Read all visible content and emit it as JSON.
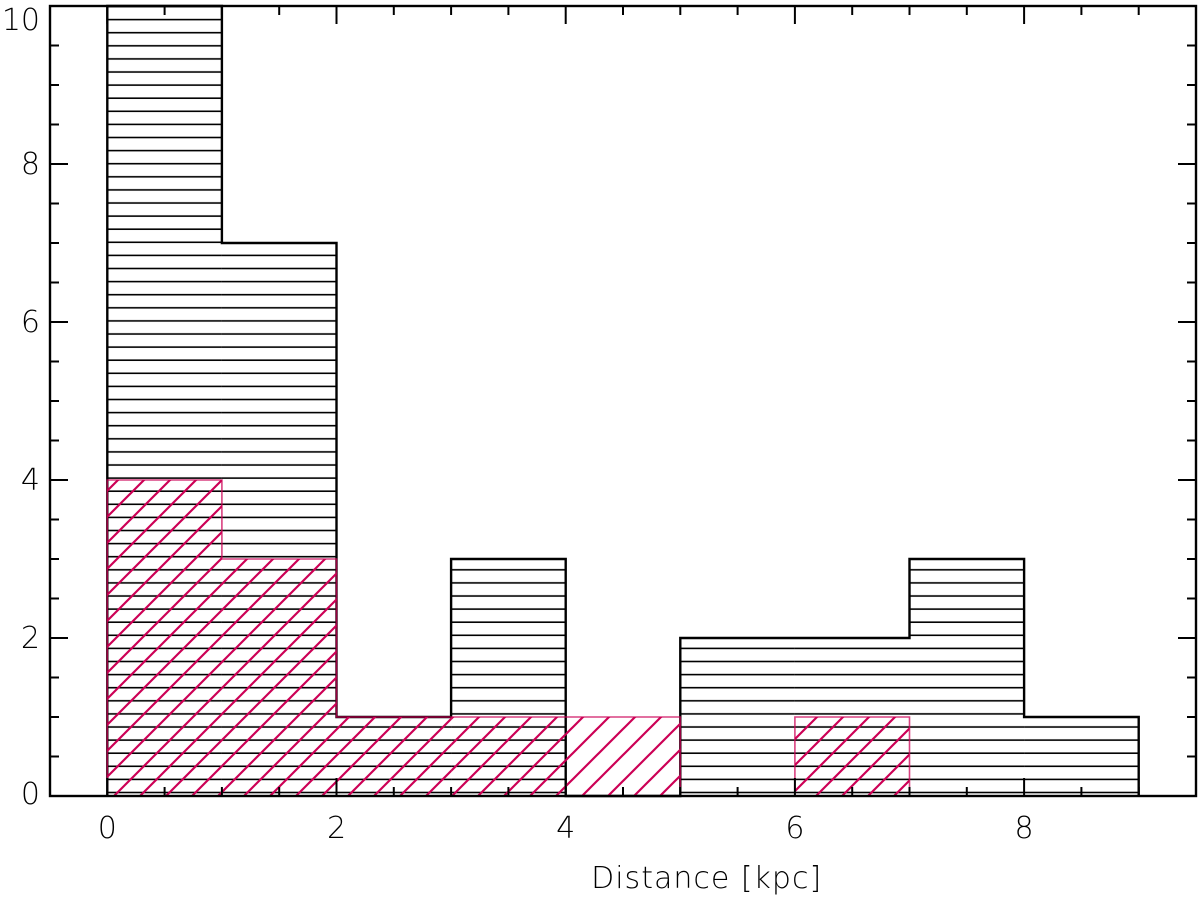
{
  "chart_data": {
    "type": "bar",
    "subtype": "histogram",
    "title": "",
    "xlabel": "Distance [kpc]",
    "ylabel": "",
    "xlim": [
      -0.5,
      9.5
    ],
    "ylim": [
      0,
      10
    ],
    "xticks": [
      0,
      2,
      4,
      6,
      8
    ],
    "yticks": [
      0,
      2,
      4,
      6,
      8,
      10
    ],
    "xminor_step": 0.5,
    "yminor_step": 0.5,
    "bin_edges": [
      0,
      1,
      2,
      3,
      4,
      5,
      6,
      7,
      8,
      9
    ],
    "series": [
      {
        "values": [
          10,
          7,
          1,
          3,
          0,
          2,
          2,
          3,
          1
        ],
        "color": "#000000",
        "fill_pattern": "horizontal-lines"
      },
      {
        "values": [
          4,
          3,
          1,
          1,
          1,
          0,
          1,
          0,
          0
        ],
        "color": "#cc0055",
        "fill_pattern": "diagonal-lines"
      }
    ]
  }
}
